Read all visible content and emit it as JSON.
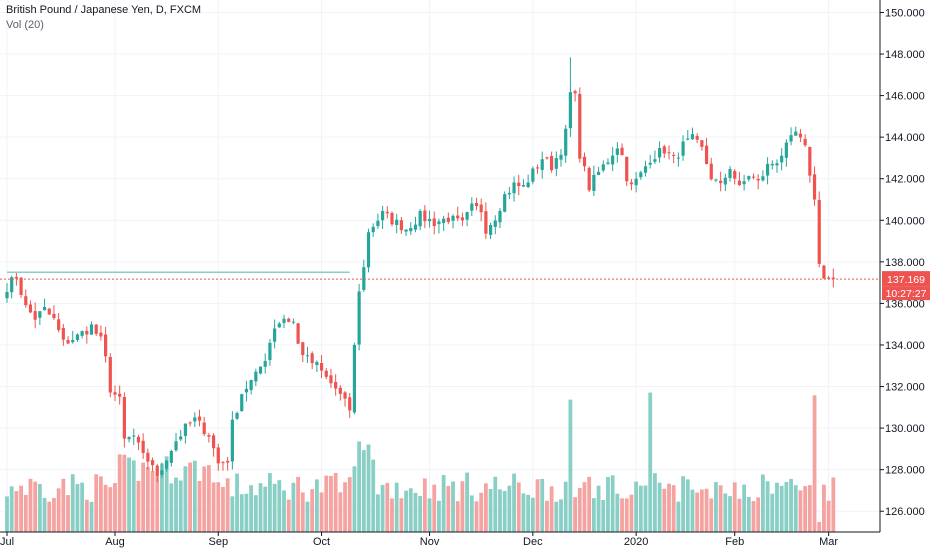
{
  "chart_data": {
    "type": "candlestick",
    "title": "British Pound / Japanese Yen, D, FXCM",
    "volume_label": "Vol (20)",
    "x_tick_labels": [
      "Jul",
      "Aug",
      "Sep",
      "Oct",
      "Nov",
      "Dec",
      "2020",
      "Feb",
      "Mar"
    ],
    "x_tick_bar_index": [
      0,
      23,
      45,
      67,
      90,
      112,
      134,
      155,
      175
    ],
    "y_tick_labels": [
      "126.000",
      "128.000",
      "130.000",
      "132.000",
      "134.000",
      "136.000",
      "138.000",
      "140.000",
      "142.000",
      "144.000",
      "146.000",
      "148.000",
      "150.000"
    ],
    "y_ticks": [
      126,
      128,
      130,
      132,
      134,
      136,
      138,
      140,
      142,
      144,
      146,
      148,
      150
    ],
    "ylim": [
      125.0,
      150.6
    ],
    "bars": 177,
    "waypoints_close": [
      [
        0,
        136.8
      ],
      [
        2,
        137.3
      ],
      [
        4,
        135.8
      ],
      [
        6,
        135.3
      ],
      [
        8,
        135.7
      ],
      [
        10,
        135.2
      ],
      [
        12,
        134.1
      ],
      [
        15,
        134.4
      ],
      [
        18,
        134.9
      ],
      [
        20,
        134.2
      ],
      [
        21,
        133.3
      ],
      [
        22,
        131.9
      ],
      [
        24,
        131.3
      ],
      [
        25,
        129.4
      ],
      [
        27,
        129.6
      ],
      [
        29,
        128.6
      ],
      [
        31,
        128.3
      ],
      [
        32,
        127.5
      ],
      [
        34,
        128.6
      ],
      [
        36,
        129.4
      ],
      [
        38,
        130.0
      ],
      [
        40,
        130.4
      ],
      [
        43,
        129.7
      ],
      [
        45,
        128.3
      ],
      [
        47,
        128.5
      ],
      [
        48,
        130.2
      ],
      [
        50,
        131.7
      ],
      [
        53,
        132.5
      ],
      [
        55,
        133.4
      ],
      [
        57,
        134.9
      ],
      [
        59,
        135.3
      ],
      [
        61,
        135.1
      ],
      [
        62,
        134.0
      ],
      [
        64,
        133.3
      ],
      [
        66,
        133.0
      ],
      [
        68,
        132.4
      ],
      [
        70,
        131.9
      ],
      [
        72,
        131.2
      ],
      [
        73,
        130.9
      ],
      [
        74,
        133.9
      ],
      [
        75,
        136.7
      ],
      [
        76,
        137.7
      ],
      [
        77,
        139.5
      ],
      [
        80,
        140.3
      ],
      [
        82,
        140.0
      ],
      [
        85,
        139.6
      ],
      [
        88,
        140.2
      ],
      [
        91,
        139.9
      ],
      [
        94,
        140.1
      ],
      [
        97,
        139.8
      ],
      [
        99,
        140.6
      ],
      [
        101,
        140.5
      ],
      [
        102,
        139.6
      ],
      [
        104,
        140.2
      ],
      [
        106,
        141.2
      ],
      [
        108,
        141.7
      ],
      [
        110,
        141.6
      ],
      [
        112,
        142.3
      ],
      [
        114,
        143.0
      ],
      [
        116,
        142.6
      ],
      [
        118,
        143.4
      ],
      [
        119,
        144.2
      ],
      [
        120,
        146.1
      ],
      [
        121,
        145.9
      ],
      [
        122,
        143.2
      ],
      [
        123,
        142.4
      ],
      [
        124,
        141.6
      ],
      [
        126,
        142.3
      ],
      [
        128,
        142.9
      ],
      [
        130,
        143.6
      ],
      [
        131,
        143.1
      ],
      [
        132,
        142.1
      ],
      [
        133,
        141.6
      ],
      [
        135,
        142.2
      ],
      [
        137,
        143.0
      ],
      [
        140,
        143.4
      ],
      [
        142,
        142.9
      ],
      [
        144,
        143.6
      ],
      [
        146,
        143.9
      ],
      [
        148,
        143.4
      ],
      [
        150,
        142.1
      ],
      [
        152,
        141.6
      ],
      [
        154,
        142.6
      ],
      [
        156,
        141.5
      ],
      [
        158,
        142.2
      ],
      [
        160,
        141.8
      ],
      [
        162,
        142.6
      ],
      [
        164,
        142.9
      ],
      [
        166,
        143.5
      ],
      [
        168,
        144.2
      ],
      [
        170,
        143.4
      ],
      [
        171,
        142.3
      ],
      [
        172,
        141.0
      ],
      [
        173,
        137.9
      ],
      [
        174,
        137.2
      ]
    ],
    "last_price": 137.169,
    "last_price_label": "137.169",
    "countdown_label": "10:27:27",
    "horizontal_line": {
      "start_bar": 0,
      "end_bar": 73,
      "price": 137.5
    },
    "colors": {
      "up": "#26a69a",
      "down": "#ef5350",
      "up_volume": "#89cfc5",
      "down_volume": "#f5a3a1",
      "grid": "#f0f3fa",
      "price_line": "#ef5350",
      "horizontal_line": "#89cfc5",
      "axis_text": "#131722"
    },
    "grid": true
  }
}
